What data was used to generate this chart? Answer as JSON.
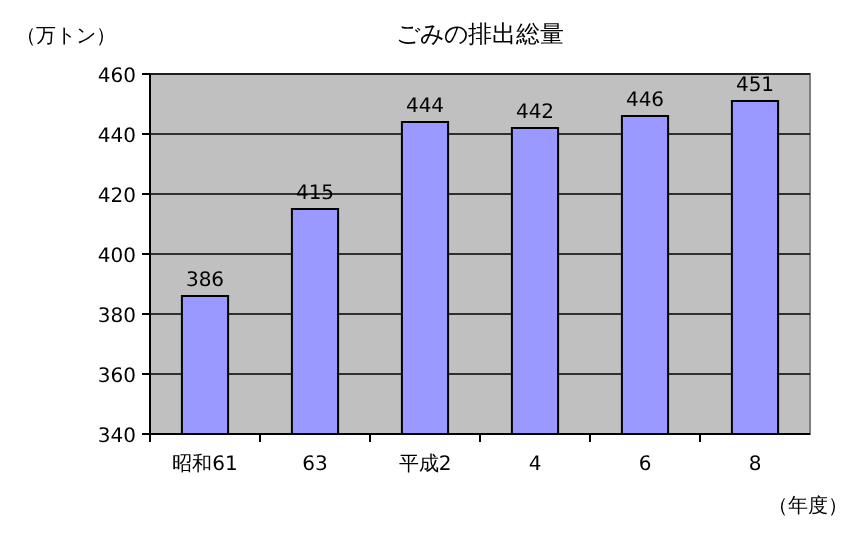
{
  "chart_data": {
    "type": "bar",
    "title": "ごみの排出総量",
    "ylabel": "（万トン）",
    "xlabel": "（年度）",
    "categories": [
      "昭和61",
      "63",
      "平成2",
      "4",
      "6",
      "8"
    ],
    "values": [
      386,
      415,
      444,
      442,
      446,
      451
    ],
    "color": "#9999ff",
    "ylim": [
      340,
      460
    ],
    "yticks": [
      340,
      360,
      380,
      400,
      420,
      440,
      460
    ],
    "grid": "y",
    "data_labels": true
  }
}
